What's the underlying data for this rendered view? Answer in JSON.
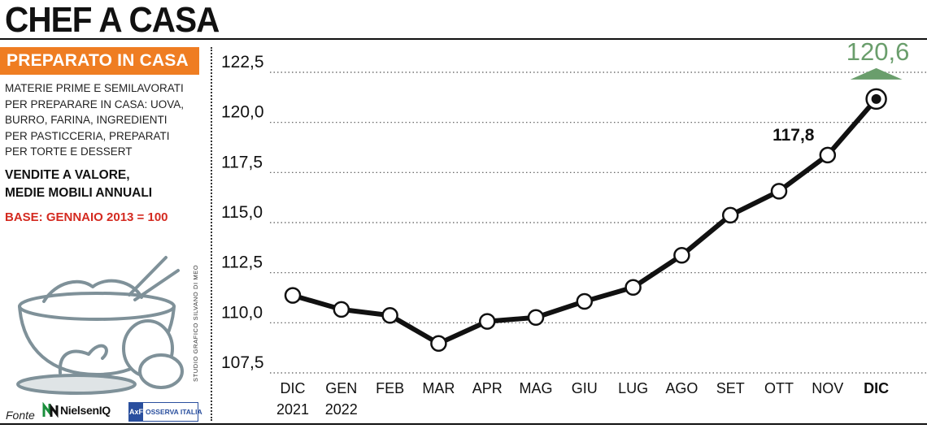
{
  "header": {
    "title": "CHEF A CASA"
  },
  "sidebar": {
    "tag": "PREPARATO IN CASA",
    "description_lines": [
      "MATERIE PRIME E SEMILAVORATI",
      "PER PREPARARE IN CASA: UOVA,",
      "BURRO, FARINA, INGREDIENTI",
      "PER PASTICCERIA,  PREPARATI",
      "PER TORTE E DESSERT"
    ],
    "metric_lines": [
      "VENDITE A VALORE,",
      "MEDIE MOBILI ANNUALI"
    ],
    "base": "BASE: GENNAIO 2013 = 100",
    "source_label": "Fonte",
    "logos": {
      "nielsen": "NielsenIQ",
      "ax_mark": "AxF",
      "ax_text": "OSSERVA ITALIA"
    },
    "credit": "STUDIO GRAFICO SILVANO DI MEO"
  },
  "chart_data": {
    "type": "line",
    "categories": [
      "DIC",
      "GEN",
      "FEB",
      "MAR",
      "APR",
      "MAG",
      "GIU",
      "LUG",
      "AGO",
      "SET",
      "OTT",
      "NOV",
      "DIC"
    ],
    "category_years": [
      "2021",
      "2022",
      "",
      "",
      "",
      "",
      "",
      "",
      "",
      "",
      "",
      "",
      ""
    ],
    "values": [
      110.8,
      110.1,
      109.8,
      108.4,
      109.5,
      109.7,
      110.5,
      111.2,
      112.8,
      114.8,
      116.0,
      117.8,
      120.6
    ],
    "yticks": [
      "107,5",
      "110,0",
      "112,5",
      "115,0",
      "117,5",
      "120,0",
      "122,5"
    ],
    "ytick_values": [
      107.5,
      110.0,
      112.5,
      115.0,
      117.5,
      120.0,
      122.5
    ],
    "ylim": [
      107.5,
      122.5
    ],
    "grid": "horizontal dotted",
    "annotations": [
      {
        "index": 11,
        "text": "117,8"
      },
      {
        "index": 12,
        "text": "120,6",
        "highlight": true
      }
    ],
    "colors": {
      "line": "#111111",
      "highlight": "#6a9e6c",
      "grid": "#555555"
    }
  }
}
